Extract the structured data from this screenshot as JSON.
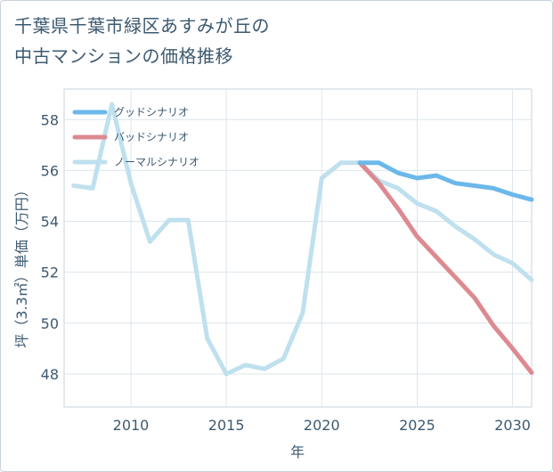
{
  "title_lines": [
    "千葉県千葉市緑区あすみが丘の",
    "中古マンションの価格推移"
  ],
  "chart_data": {
    "type": "line",
    "xlabel": "年",
    "ylabel": "坪（3.3㎡）単価（万円）",
    "xlim": [
      2006.5,
      2031
    ],
    "ylim": [
      46.7,
      59.2
    ],
    "x_ticks": [
      2010,
      2015,
      2020,
      2025,
      2030
    ],
    "y_ticks": [
      48,
      50,
      52,
      54,
      56,
      58
    ],
    "grid": true,
    "legend_position": "top-left",
    "series": [
      {
        "name": "グッドシナリオ",
        "color": "#6cb8ea",
        "x": [
          2022,
          2023,
          2024,
          2025,
          2026,
          2027,
          2028,
          2029,
          2030,
          2031
        ],
        "y": [
          56.3,
          56.3,
          55.9,
          55.7,
          55.8,
          55.5,
          55.4,
          55.3,
          55.05,
          54.85
        ]
      },
      {
        "name": "バッドシナリオ",
        "color": "#dc8a90",
        "x": [
          2022,
          2023,
          2024,
          2025,
          2026,
          2027,
          2028,
          2029,
          2030,
          2031
        ],
        "y": [
          56.3,
          55.5,
          54.5,
          53.4,
          52.6,
          51.8,
          51.0,
          49.9,
          49.0,
          48.05
        ]
      },
      {
        "name": "ノーマルシナリオ",
        "color": "#bfe0ee",
        "x": [
          2007,
          2008,
          2009,
          2010,
          2011,
          2012,
          2013,
          2014,
          2015,
          2016,
          2017,
          2018,
          2019,
          2020,
          2021,
          2022,
          2023,
          2024,
          2025,
          2026,
          2027,
          2028,
          2029,
          2030,
          2031
        ],
        "y": [
          55.4,
          55.3,
          58.6,
          55.5,
          53.2,
          54.05,
          54.05,
          49.4,
          48.0,
          48.35,
          48.2,
          48.6,
          50.4,
          55.7,
          56.3,
          56.3,
          55.6,
          55.3,
          54.7,
          54.4,
          53.8,
          53.3,
          52.7,
          52.35,
          51.7
        ]
      }
    ]
  }
}
